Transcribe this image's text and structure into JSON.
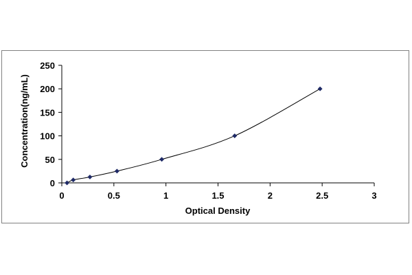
{
  "chart_data": {
    "type": "scatter",
    "title": "",
    "xlabel": "Optical Density",
    "ylabel": "Concentration(ng/mL)",
    "xlim": [
      0,
      3
    ],
    "ylim": [
      0,
      250
    ],
    "x_ticks": [
      "0",
      "0.5",
      "1",
      "1.5",
      "2",
      "2.5",
      "3"
    ],
    "y_ticks": [
      "0",
      "50",
      "100",
      "150",
      "200",
      "250"
    ],
    "grid": false,
    "legend": "none",
    "series": [
      {
        "points": [
          {
            "x": 0.05,
            "y": 0
          },
          {
            "x": 0.11,
            "y": 6.25
          },
          {
            "x": 0.27,
            "y": 12.5
          },
          {
            "x": 0.53,
            "y": 25
          },
          {
            "x": 0.96,
            "y": 50
          },
          {
            "x": 1.66,
            "y": 100
          },
          {
            "x": 2.48,
            "y": 200
          }
        ],
        "color": "#1f2a66",
        "marker": "diamond",
        "smooth_line": true,
        "line_color": "#000000"
      }
    ]
  }
}
